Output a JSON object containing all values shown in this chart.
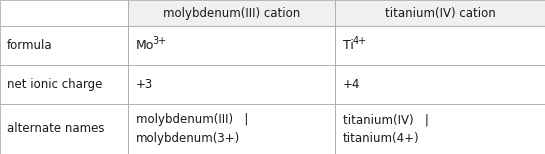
{
  "header_col1": "molybdenum(III) cation",
  "header_col2": "titanium(IV) cation",
  "rows": [
    {
      "label": "formula",
      "col1_base": "Mo",
      "col1_sup": "3+",
      "col2_base": "Ti",
      "col2_sup": "4+",
      "use_superscript": true,
      "col1_plain": "",
      "col2_plain": ""
    },
    {
      "label": "net ionic charge",
      "col1_base": "",
      "col1_sup": "",
      "col2_base": "",
      "col2_sup": "",
      "use_superscript": false,
      "col1_plain": "+3",
      "col2_plain": "+4"
    },
    {
      "label": "alternate names",
      "col1_base": "",
      "col1_sup": "",
      "col2_base": "",
      "col2_sup": "",
      "use_superscript": false,
      "col1_plain": "molybdenum(III)   |\nmolybdenum(3+)",
      "col2_plain": "titanium(IV)   |\ntitanium(4+)"
    }
  ],
  "bg_color": "#ffffff",
  "header_bg": "#f0f0f0",
  "border_color": "#b0b0b0",
  "text_color": "#1a1a1a",
  "font_size": 8.5,
  "col_bounds": [
    0,
    128,
    335,
    545
  ],
  "row_bounds": [
    0,
    26,
    65,
    104,
    154
  ]
}
